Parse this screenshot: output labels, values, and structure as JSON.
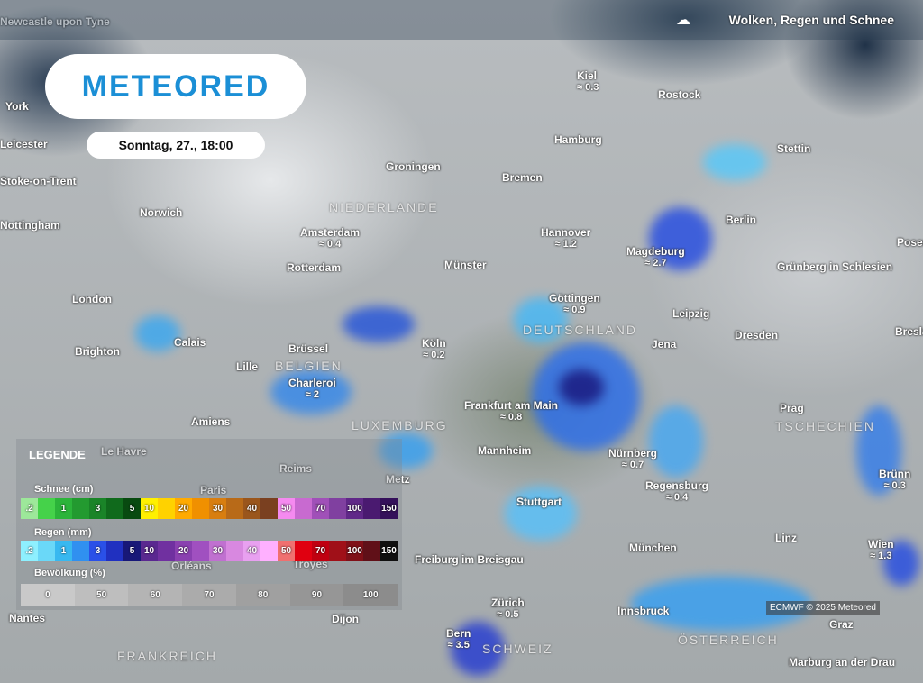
{
  "header": {
    "title": "Wolken, Regen und Schnee",
    "icon": "cloud-rain-snow-icon"
  },
  "logo": "METEORED",
  "date": "Sonntag, 27., 18:00",
  "credit": "ECMWF © 2025 Meteored",
  "legend": {
    "title": "LEGENDE",
    "snow_label": "Schnee (cm)",
    "snow": [
      {
        "l": ".2",
        "c": "#9de89a"
      },
      {
        "l": "",
        "c": "#45d24a"
      },
      {
        "l": "1",
        "c": "#2cb43a"
      },
      {
        "l": "",
        "c": "#239a30"
      },
      {
        "l": "3",
        "c": "#1a8428"
      },
      {
        "l": "",
        "c": "#106a1c"
      },
      {
        "l": "5",
        "c": "#084a10"
      },
      {
        "l": "10",
        "c": "#fff000"
      },
      {
        "l": "",
        "c": "#ffd200"
      },
      {
        "l": "20",
        "c": "#ffaa00"
      },
      {
        "l": "",
        "c": "#f09000"
      },
      {
        "l": "30",
        "c": "#d87e10"
      },
      {
        "l": "",
        "c": "#b86a18"
      },
      {
        "l": "40",
        "c": "#9a561c"
      },
      {
        "l": "",
        "c": "#7a4020"
      },
      {
        "l": "50",
        "c": "#f58af0"
      },
      {
        "l": "",
        "c": "#c86ad0"
      },
      {
        "l": "70",
        "c": "#a050b8"
      },
      {
        "l": "",
        "c": "#8040a0"
      },
      {
        "l": "100",
        "c": "#602888"
      },
      {
        "l": "",
        "c": "#4a1a70"
      },
      {
        "l": "150",
        "c": "#34105a"
      }
    ],
    "rain_label": "Regen (mm)",
    "rain": [
      {
        "l": ".2",
        "c": "#8ef0ff"
      },
      {
        "l": "",
        "c": "#6ad8f8"
      },
      {
        "l": "1",
        "c": "#38b8f0"
      },
      {
        "l": "",
        "c": "#3090f0"
      },
      {
        "l": "3",
        "c": "#2a50e8"
      },
      {
        "l": "",
        "c": "#2030c0"
      },
      {
        "l": "5",
        "c": "#181878"
      },
      {
        "l": "10",
        "c": "#5a2890"
      },
      {
        "l": "",
        "c": "#7030a0"
      },
      {
        "l": "20",
        "c": "#8a40b0"
      },
      {
        "l": "",
        "c": "#a050c0"
      },
      {
        "l": "30",
        "c": "#c070d0"
      },
      {
        "l": "",
        "c": "#d888e0"
      },
      {
        "l": "40",
        "c": "#e8a0f0"
      },
      {
        "l": "",
        "c": "#ffb0ff"
      },
      {
        "l": "50",
        "c": "#f07070"
      },
      {
        "l": "",
        "c": "#e00010"
      },
      {
        "l": "70",
        "c": "#c00010"
      },
      {
        "l": "",
        "c": "#a01018"
      },
      {
        "l": "100",
        "c": "#801018"
      },
      {
        "l": "",
        "c": "#601018"
      },
      {
        "l": "150",
        "c": "#101010"
      }
    ],
    "cloud_label": "Bewölkung (%)",
    "cloud": [
      "0",
      "50",
      "60",
      "70",
      "80",
      "90",
      "100"
    ]
  },
  "countries": [
    "NIEDERLANDE",
    "BELGIEN",
    "LUXEMBURG",
    "DEUTSCHLAND",
    "TSCHECHIEN",
    "FRANKREICH",
    "SCHWEIZ",
    "ÖSTERREICH"
  ],
  "cities": [
    {
      "n": "Kiel",
      "v": "0.3"
    },
    {
      "n": "Rostock",
      "v": ""
    },
    {
      "n": "Hamburg",
      "v": ""
    },
    {
      "n": "Stettin",
      "v": ""
    },
    {
      "n": "Groningen",
      "v": ""
    },
    {
      "n": "Bremen",
      "v": ""
    },
    {
      "n": "Norwich",
      "v": ""
    },
    {
      "n": "Amsterdam",
      "v": "0.4"
    },
    {
      "n": "Hannover",
      "v": "1.2"
    },
    {
      "n": "Magdeburg",
      "v": "2.7"
    },
    {
      "n": "Berlin",
      "v": ""
    },
    {
      "n": "Rotterdam",
      "v": ""
    },
    {
      "n": "Münster",
      "v": ""
    },
    {
      "n": "Grünberg in Schlesien",
      "v": ""
    },
    {
      "n": "London",
      "v": ""
    },
    {
      "n": "Göttingen",
      "v": "0.9"
    },
    {
      "n": "Leipzig",
      "v": ""
    },
    {
      "n": "Brighton",
      "v": ""
    },
    {
      "n": "Calais",
      "v": ""
    },
    {
      "n": "Brüssel",
      "v": ""
    },
    {
      "n": "Köln",
      "v": "0.2"
    },
    {
      "n": "Jena",
      "v": ""
    },
    {
      "n": "Dresden",
      "v": ""
    },
    {
      "n": "Lille",
      "v": ""
    },
    {
      "n": "Charleroi",
      "v": "2"
    },
    {
      "n": "Frankfurt am Main",
      "v": "0.8"
    },
    {
      "n": "Prag",
      "v": ""
    },
    {
      "n": "Amiens",
      "v": ""
    },
    {
      "n": "Le Havre",
      "v": ""
    },
    {
      "n": "Reims",
      "v": ""
    },
    {
      "n": "Mannheim",
      "v": ""
    },
    {
      "n": "Nürnberg",
      "v": "0.7"
    },
    {
      "n": "Metz",
      "v": ""
    },
    {
      "n": "Brünn",
      "v": "0.3"
    },
    {
      "n": "Regensburg",
      "v": "0.4"
    },
    {
      "n": "Paris",
      "v": ""
    },
    {
      "n": "Stuttgart",
      "v": ""
    },
    {
      "n": "Troyes",
      "v": ""
    },
    {
      "n": "Linz",
      "v": ""
    },
    {
      "n": "Wien",
      "v": "1.3"
    },
    {
      "n": "Orléans",
      "v": ""
    },
    {
      "n": "Freiburg im Breisgau",
      "v": ""
    },
    {
      "n": "München",
      "v": ""
    },
    {
      "n": "Zürich",
      "v": "0.5"
    },
    {
      "n": "Innsbruck",
      "v": ""
    },
    {
      "n": "Dijon",
      "v": ""
    },
    {
      "n": "Nantes",
      "v": ""
    },
    {
      "n": "Graz",
      "v": ""
    },
    {
      "n": "Bern",
      "v": "3.5"
    },
    {
      "n": "Marburg an der Drau",
      "v": ""
    },
    {
      "n": "Newcastle upon Tyne",
      "v": ""
    },
    {
      "n": "Nottingham",
      "v": ""
    },
    {
      "n": "Leicester",
      "v": ""
    },
    {
      "n": "Stoke-on-Trent",
      "v": ""
    },
    {
      "n": "York",
      "v": ""
    },
    {
      "n": "Posen",
      "v": ""
    },
    {
      "n": "Breslau",
      "v": ""
    }
  ]
}
